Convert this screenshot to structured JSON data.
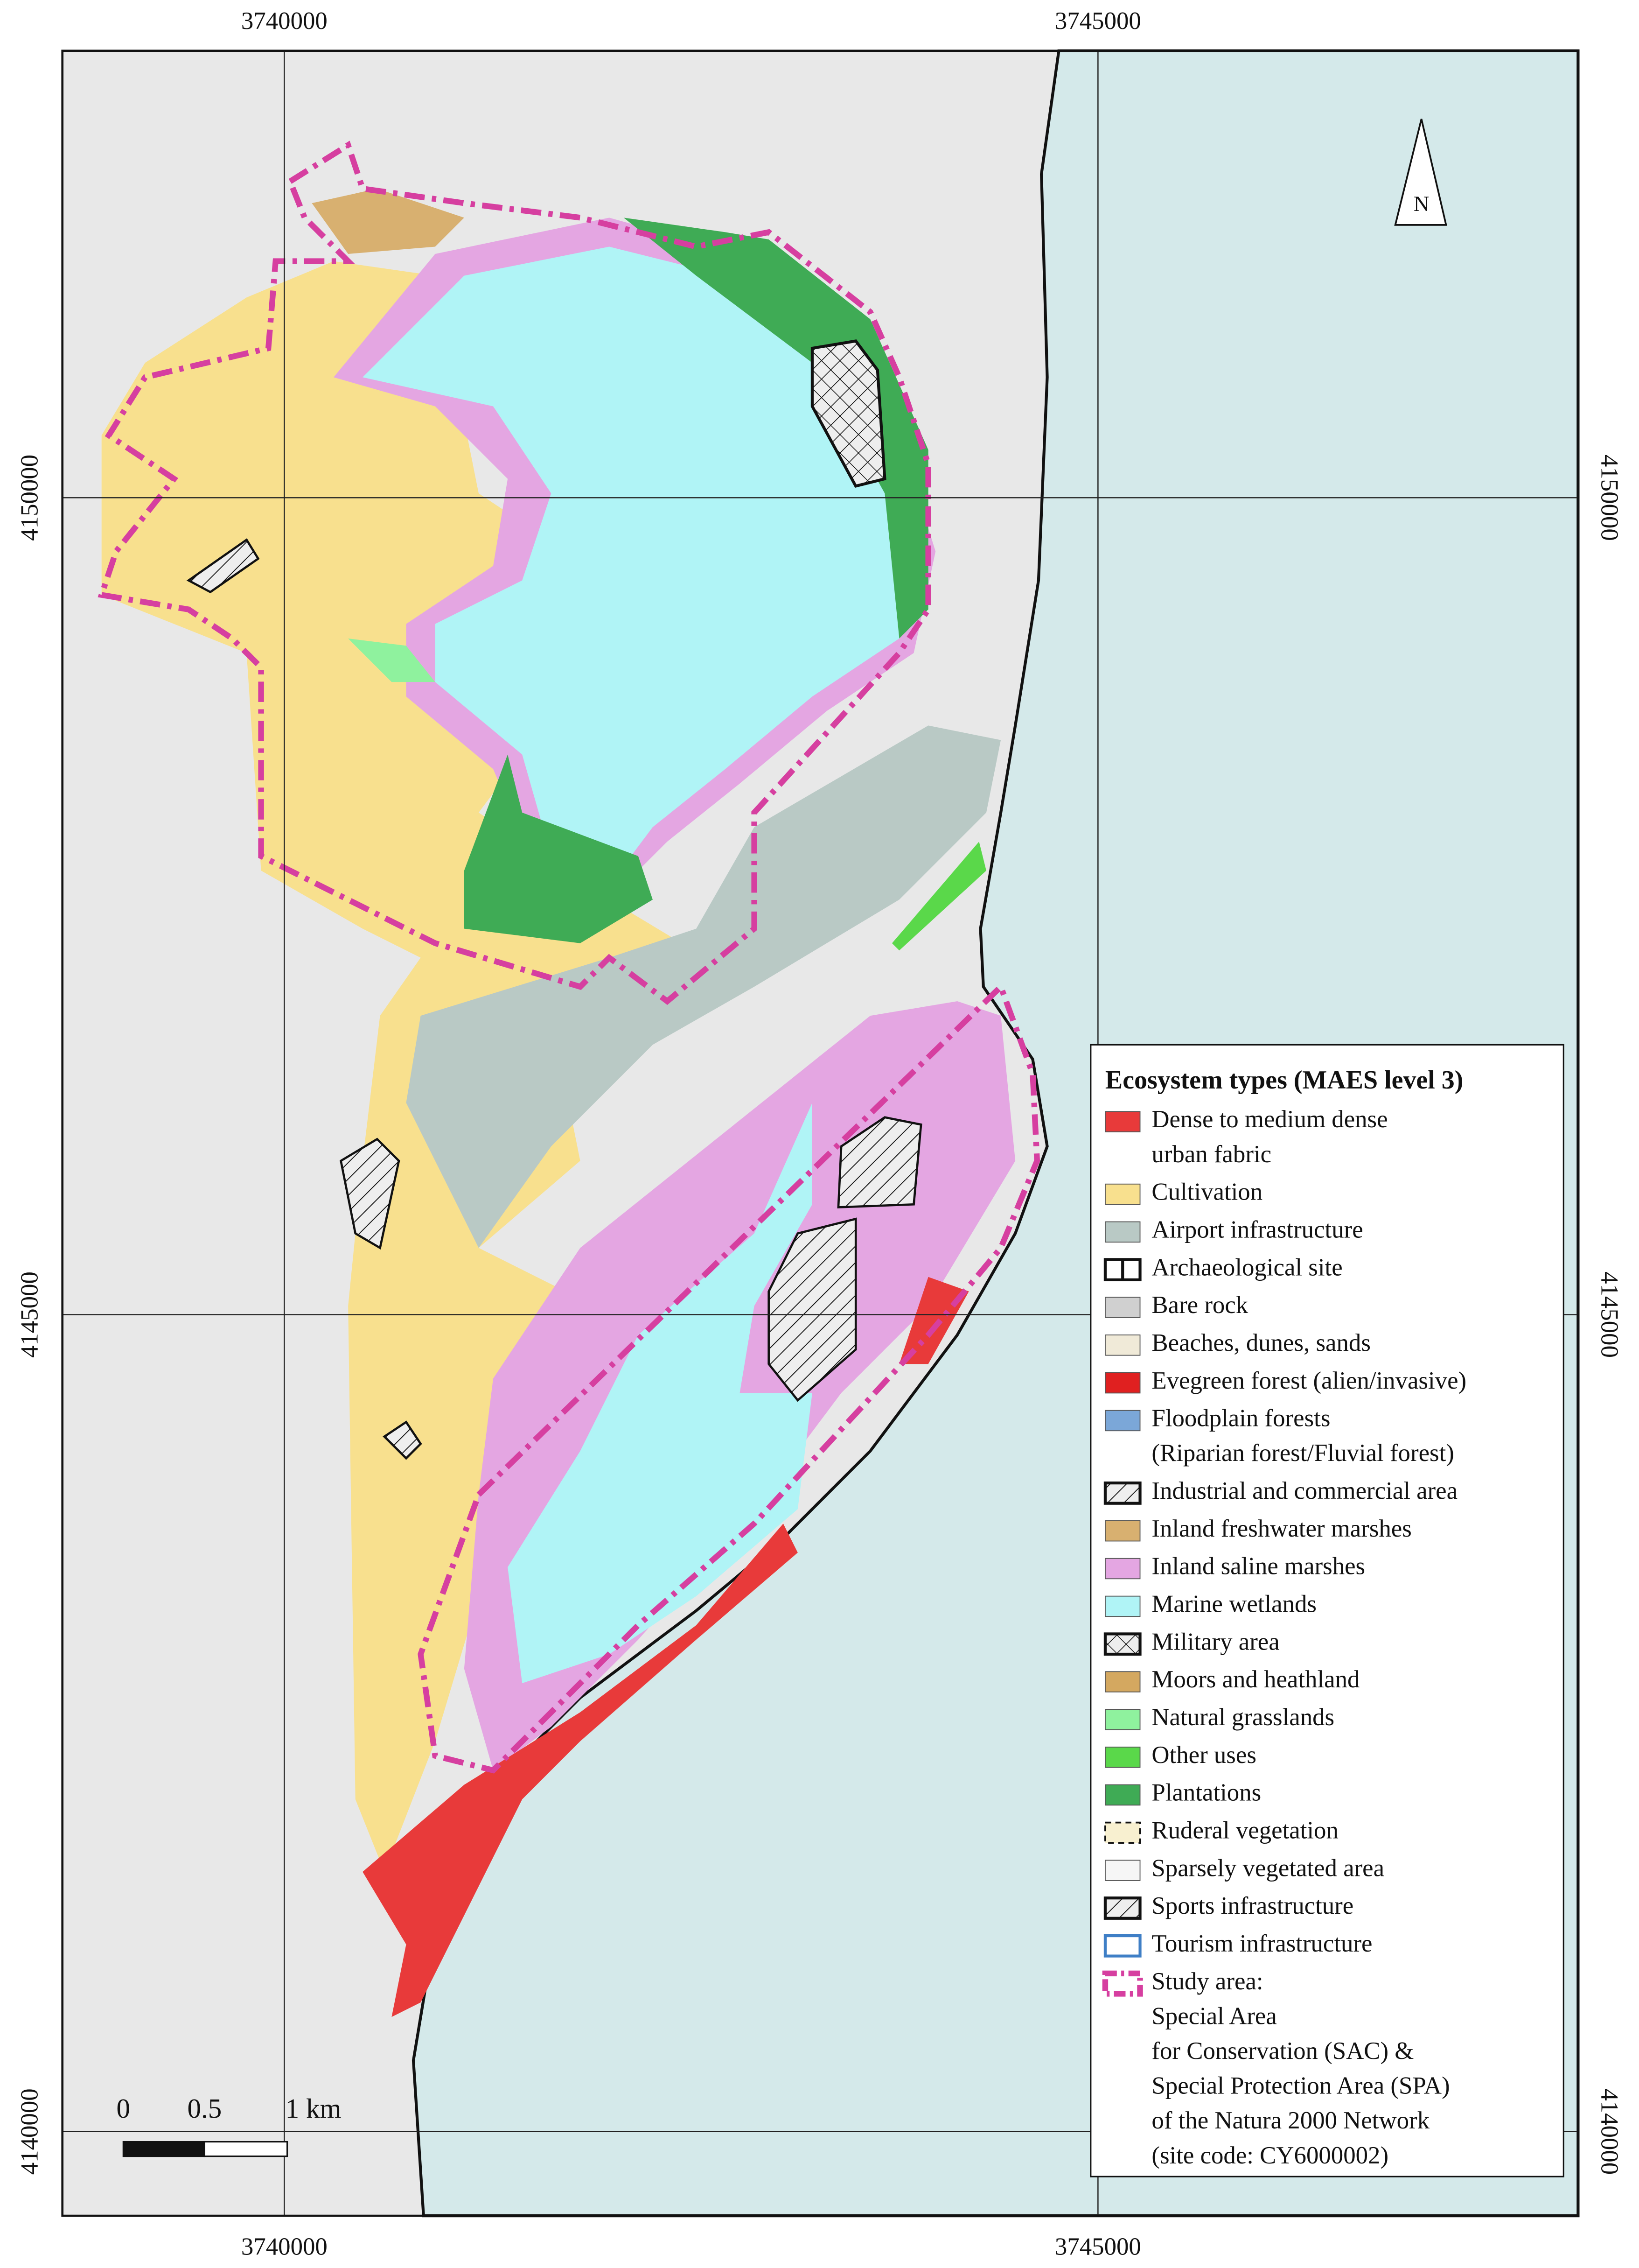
{
  "grid": {
    "x_labels": [
      "3740000",
      "3745000"
    ],
    "y_labels": [
      "4150000",
      "4145000",
      "4140000"
    ]
  },
  "north": "N",
  "scale_bar": {
    "labels": [
      "0",
      "0.5",
      "1 km"
    ]
  },
  "legend": {
    "title": "Ecosystem types (MAES level 3)",
    "items": [
      {
        "lines": [
          "Dense to medium dense",
          "urban fabric"
        ],
        "color": "#e83a3a",
        "style": "fill"
      },
      {
        "lines": [
          "Cultivation"
        ],
        "color": "#f8e08e",
        "style": "fill"
      },
      {
        "lines": [
          "Airport infrastructure"
        ],
        "color": "#b9c9c5",
        "style": "fill"
      },
      {
        "lines": [
          "Archaeological site"
        ],
        "color": "#ffffff",
        "style": "outline"
      },
      {
        "lines": [
          "Bare rock"
        ],
        "color": "#d0d0d0",
        "style": "fill"
      },
      {
        "lines": [
          "Beaches, dunes, sands"
        ],
        "color": "#f0ead8",
        "style": "fill"
      },
      {
        "lines": [
          "Evegreen forest (alien/invasive)"
        ],
        "color": "#e02020",
        "style": "fill"
      },
      {
        "lines": [
          "Floodplain forests",
          "(Riparian forest/Fluvial forest)"
        ],
        "color": "#7ba7d8",
        "style": "fill"
      },
      {
        "lines": [
          "Industrial and commercial area"
        ],
        "color": "#ffffff",
        "style": "hatch"
      },
      {
        "lines": [
          "Inland freshwater marshes"
        ],
        "color": "#d8b070",
        "style": "fill"
      },
      {
        "lines": [
          "Inland saline marshes"
        ],
        "color": "#e4a6e2",
        "style": "fill"
      },
      {
        "lines": [
          "Marine wetlands"
        ],
        "color": "#b0f4f6",
        "style": "fill"
      },
      {
        "lines": [
          "Military area"
        ],
        "color": "#ffffff",
        "style": "cross"
      },
      {
        "lines": [
          "Moors and heathland"
        ],
        "color": "#d4a860",
        "style": "fill"
      },
      {
        "lines": [
          "Natural grasslands"
        ],
        "color": "#8ff29e",
        "style": "fill"
      },
      {
        "lines": [
          "Other uses"
        ],
        "color": "#5ad84a",
        "style": "fill"
      },
      {
        "lines": [
          "Plantations"
        ],
        "color": "#3fab55",
        "style": "fill"
      },
      {
        "lines": [
          "Ruderal vegetation"
        ],
        "color": "#f8f0d0",
        "style": "dashed"
      },
      {
        "lines": [
          "Sparsely vegetated area"
        ],
        "color": "#f6f6f6",
        "style": "fill"
      },
      {
        "lines": [
          "Sports infrastructure"
        ],
        "color": "#ffffff",
        "style": "hatch"
      },
      {
        "lines": [
          "Tourism infrastructure"
        ],
        "color": "#ffffff",
        "style": "blue-outline"
      },
      {
        "lines": [
          "Study area:",
          "Special Area",
          "for Conservation (SAC) &",
          "Special Protection Area (SPA)",
          "of the Natura 2000 Network",
          "(site code: CY6000002)"
        ],
        "color": "#d63fa0",
        "style": "study"
      }
    ]
  }
}
